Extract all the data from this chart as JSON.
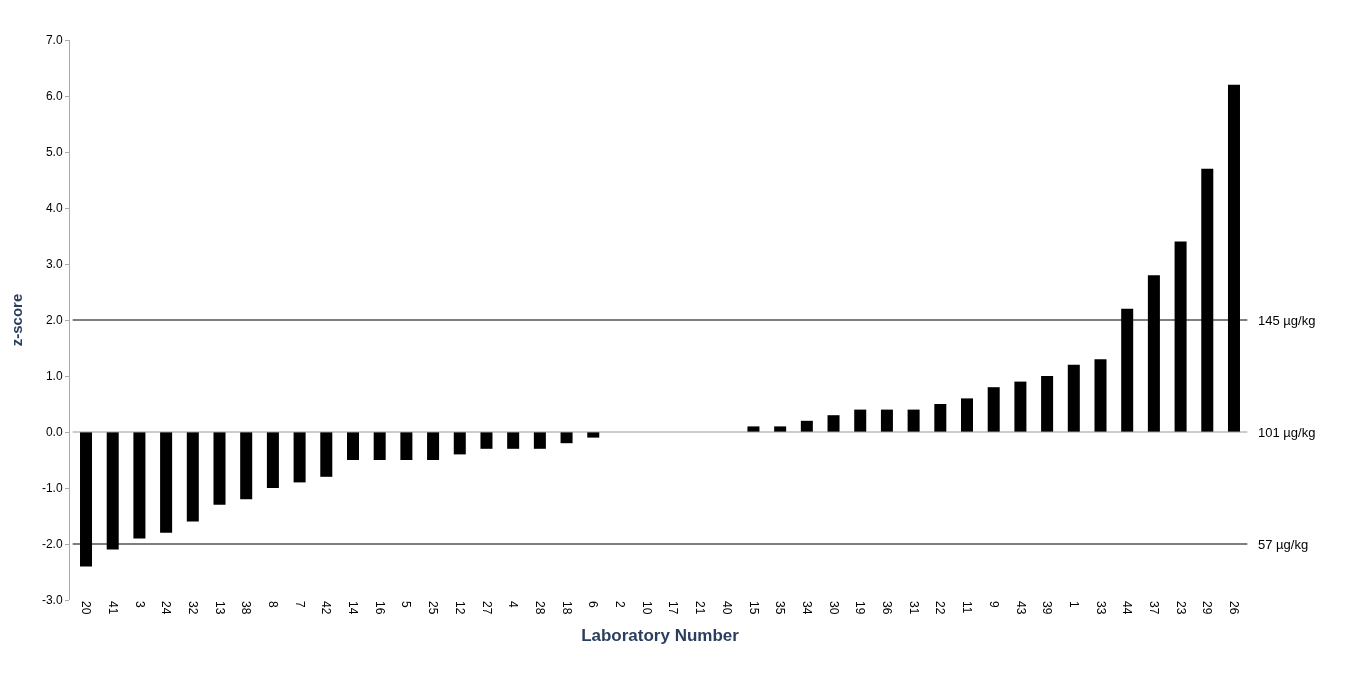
{
  "chart_data": {
    "type": "bar",
    "xlabel": "Laboratory Number",
    "ylabel": "z-score",
    "categories": [
      "20",
      "41",
      "3",
      "24",
      "32",
      "13",
      "38",
      "8",
      "7",
      "42",
      "14",
      "16",
      "5",
      "25",
      "12",
      "27",
      "4",
      "28",
      "18",
      "6",
      "2",
      "10",
      "17",
      "21",
      "40",
      "15",
      "35",
      "34",
      "30",
      "19",
      "36",
      "31",
      "22",
      "11",
      "9",
      "43",
      "39",
      "1",
      "33",
      "44",
      "37",
      "23",
      "29",
      "26"
    ],
    "values": [
      -2.4,
      -2.1,
      -1.9,
      -1.8,
      -1.6,
      -1.3,
      -1.2,
      -1.0,
      -0.9,
      -0.8,
      -0.5,
      -0.5,
      -0.5,
      -0.5,
      -0.4,
      -0.3,
      -0.3,
      -0.3,
      -0.2,
      -0.1,
      0,
      0,
      0,
      0,
      0,
      0.1,
      0.1,
      0.2,
      0.3,
      0.4,
      0.4,
      0.4,
      0.5,
      0.6,
      0.8,
      0.9,
      1.0,
      1.2,
      1.3,
      2.2,
      2.8,
      3.4,
      4.7,
      6.2
    ],
    "color": "#000000",
    "ylim": [
      -3,
      7
    ],
    "yticks": [
      {
        "value": -3,
        "label": "-3.0"
      },
      {
        "value": -2,
        "label": "-2.0"
      },
      {
        "value": -1,
        "label": "-1.0"
      },
      {
        "value": 0,
        "label": "0.0"
      },
      {
        "value": 1,
        "label": "1.0"
      },
      {
        "value": 2,
        "label": "2.0"
      },
      {
        "value": 3,
        "label": "3.0"
      },
      {
        "value": 4,
        "label": "4.0"
      },
      {
        "value": 5,
        "label": "5.0"
      },
      {
        "value": 6,
        "label": "6.0"
      },
      {
        "value": 7,
        "label": "7.0"
      }
    ],
    "ref_lines": [
      {
        "axis": "y",
        "value": 2,
        "label": "145 µg/kg",
        "color": "#000000"
      },
      {
        "axis": "y",
        "value": 0,
        "label": "101 µg/kg",
        "color": "#999999"
      },
      {
        "axis": "y",
        "value": -2,
        "label": "57 µg/kg",
        "color": "#000000"
      }
    ]
  }
}
